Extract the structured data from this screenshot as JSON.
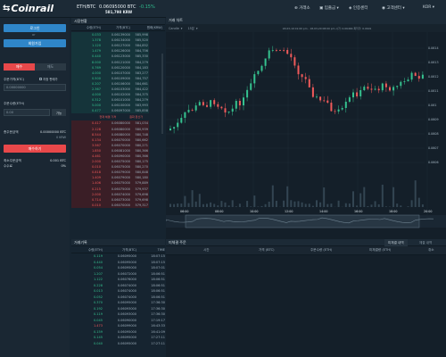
{
  "header": {
    "logo": "Coinrail",
    "pair": "ETH/BTC",
    "price": "0.06095000 BTC",
    "change": "-0.15%",
    "krw": "581,798 KRW",
    "nav": [
      "거래소",
      "입출금",
      "인증센터",
      "고객센터",
      "KOR"
    ]
  },
  "left": {
    "login": "로그인",
    "divider": "or",
    "signup": "회원가입",
    "buy_tab": "매수",
    "sell_tab": "매도",
    "price_label": "주문가격(BTC)",
    "market_label": "지정 판매가",
    "price_placeholder": "0.00000000",
    "qty_label": "주문수량(ETH)",
    "qty_placeholder": "0.00",
    "qty_button": "가능",
    "total_label": "총주문금액",
    "total_value": "0.00000000 BTC",
    "total_krw": "0 KRW",
    "submit": "매수하기",
    "fee_label": "최소주문금액",
    "fee_value": "0.001 BTC",
    "fee2_label": "수수료",
    "fee2_value": "0%"
  },
  "orderbook": {
    "title": "시장현황",
    "cols": [
      "수량(ETH)",
      "가격(BTC)",
      "원화(KRW)"
    ],
    "asks": [
      [
        "0.033",
        "0.06139000",
        "585,998"
      ],
      [
        "1.378",
        "0.06134000",
        "585,520"
      ],
      [
        "1.120",
        "0.06127000",
        "584,852"
      ],
      [
        "1.479",
        "0.06126000",
        "584,756"
      ],
      [
        "0.440",
        "0.06123000",
        "585,330"
      ],
      [
        "8.000",
        "0.06121000",
        "584,279"
      ],
      [
        "0.769",
        "0.06120000",
        "584,183"
      ],
      [
        "4.000",
        "0.06107000",
        "583,277"
      ],
      [
        "0.500",
        "0.06109000",
        "584,757"
      ],
      [
        "0.207",
        "0.06106000",
        "584,661"
      ],
      [
        "2.367",
        "0.06103000",
        "584,422"
      ],
      [
        "4.000",
        "0.06102000",
        "584,375"
      ],
      [
        "0.312",
        "0.06101000",
        "584,279"
      ],
      [
        "5.000",
        "0.06100000",
        "583,993"
      ],
      [
        "0.477",
        "0.06097000",
        "585,858"
      ]
    ],
    "mid_left": "현재 체결 가격",
    "mid_right": "원화 환산가",
    "bids": [
      [
        "0.417",
        "0.06080000",
        "581,034"
      ],
      [
        "2.128",
        "0.06080000",
        "580,939"
      ],
      [
        "8.544",
        "0.06080000",
        "580,748"
      ],
      [
        "0.134",
        "0.06070000",
        "580,662"
      ],
      [
        "3.567",
        "0.06070000",
        "580,271"
      ],
      [
        "1.850",
        "0.06081000",
        "580,366"
      ],
      [
        "4.461",
        "0.06090000",
        "580,366"
      ],
      [
        "2.000",
        "0.06075000",
        "580,175"
      ],
      [
        "0.010",
        "0.06075000",
        "580,270"
      ],
      [
        "0.818",
        "0.06079000",
        "580,848"
      ],
      [
        "1.409",
        "0.06079000",
        "580,180"
      ],
      [
        "1.406",
        "0.06075000",
        "579,889"
      ],
      [
        "0.215",
        "0.06075000",
        "579,937"
      ],
      [
        "2.000",
        "0.06074000",
        "579,698"
      ],
      [
        "0.714",
        "0.06073000",
        "579,698"
      ],
      [
        "0.010",
        "0.06070000",
        "579,317"
      ]
    ]
  },
  "chart": {
    "title": "거래 차트",
    "type_label": "Candle",
    "interval": "15분",
    "ohlc": "18-03-19 01:00 pm - 18-03-20 08:00 pm  시가: 0.06466  최저가: 0.0601",
    "x_ticks": [
      "06:00",
      "08:00",
      "10:00",
      "12:00",
      "14:00",
      "16:00",
      "18:00",
      "20:00"
    ],
    "y_ticks": [
      "0.0614",
      "0.0613",
      "0.0612",
      "0.0611",
      "0.061",
      "0.0609",
      "0.0608",
      "0.0607",
      "0.0606"
    ]
  },
  "trades": {
    "title": "거래기록",
    "cols": [
      "수량(ETH)",
      "가격(BTC)",
      "TIME"
    ],
    "rows": [
      [
        "0.119",
        "0.06095000",
        "18:07:15"
      ],
      [
        "0.440",
        "0.06095000",
        "18:07:15"
      ],
      [
        "0.054",
        "0.06095000",
        "18:07:01"
      ],
      [
        "1.207",
        "0.06072000",
        "18:06:51"
      ],
      [
        "1.122",
        "0.06076000",
        "18:06:51"
      ],
      [
        "0.228",
        "0.06074000",
        "18:06:51"
      ],
      [
        "0.013",
        "0.06074000",
        "18:06:51"
      ],
      [
        "0.052",
        "0.06074000",
        "18:06:51"
      ],
      [
        "0.370",
        "0.06095000",
        "17:36:30"
      ],
      [
        "0.192",
        "0.06093000",
        "17:36:30"
      ],
      [
        "0.119",
        "0.06093000",
        "17:36:30"
      ],
      [
        "0.045",
        "0.06090000",
        "17:19:17"
      ],
      [
        "1.473",
        "0.06099000",
        "16:43:33"
      ],
      [
        "0.159",
        "0.06095000",
        "16:41:09"
      ],
      [
        "0.145",
        "0.06095000",
        "17:27:11"
      ],
      [
        "0.040",
        "0.06095000",
        "17:27:11"
      ]
    ]
  },
  "myorders": {
    "title": "미체결 주문",
    "tab1": "미체결 내역",
    "tab2": "체결 내역",
    "cols": [
      "시간",
      "가격 (BTC)",
      "주문수량 (ETH)",
      "미체결량 (ETH)",
      "취소"
    ]
  }
}
